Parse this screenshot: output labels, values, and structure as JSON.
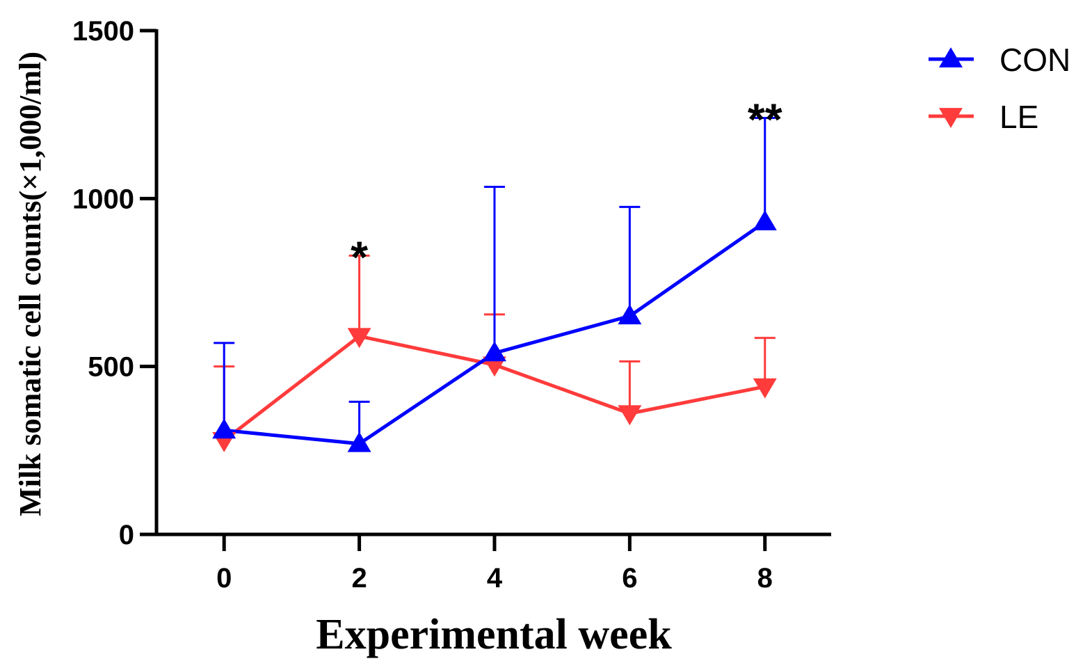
{
  "chart_data": {
    "type": "line",
    "title": "",
    "xlabel": "Experimental week",
    "ylabel": "Milk somatic cell counts(×1,000/ml)",
    "x": [
      0,
      2,
      4,
      6,
      8
    ],
    "x_ticks": [
      "0",
      "2",
      "4",
      "6",
      "8"
    ],
    "xlim": [
      -1,
      8.98
    ],
    "ylim": [
      0,
      1500
    ],
    "y_ticks": [
      "0",
      "500",
      "1000",
      "1500"
    ],
    "legend_position": "top-right",
    "series": [
      {
        "name": "CON",
        "color": "#0000ff",
        "marker": "triangle-up",
        "values": [
          310,
          270,
          540,
          650,
          930
        ],
        "error_upper": [
          570,
          395,
          1035,
          975,
          1240
        ]
      },
      {
        "name": "LE",
        "color": "#ff3b3b",
        "marker": "triangle-down",
        "values": [
          280,
          590,
          505,
          360,
          440
        ],
        "error_upper": [
          500,
          830,
          655,
          515,
          585
        ]
      }
    ],
    "annotations": [
      {
        "x": 2,
        "text": "*"
      },
      {
        "x": 8,
        "text": "**"
      }
    ]
  }
}
